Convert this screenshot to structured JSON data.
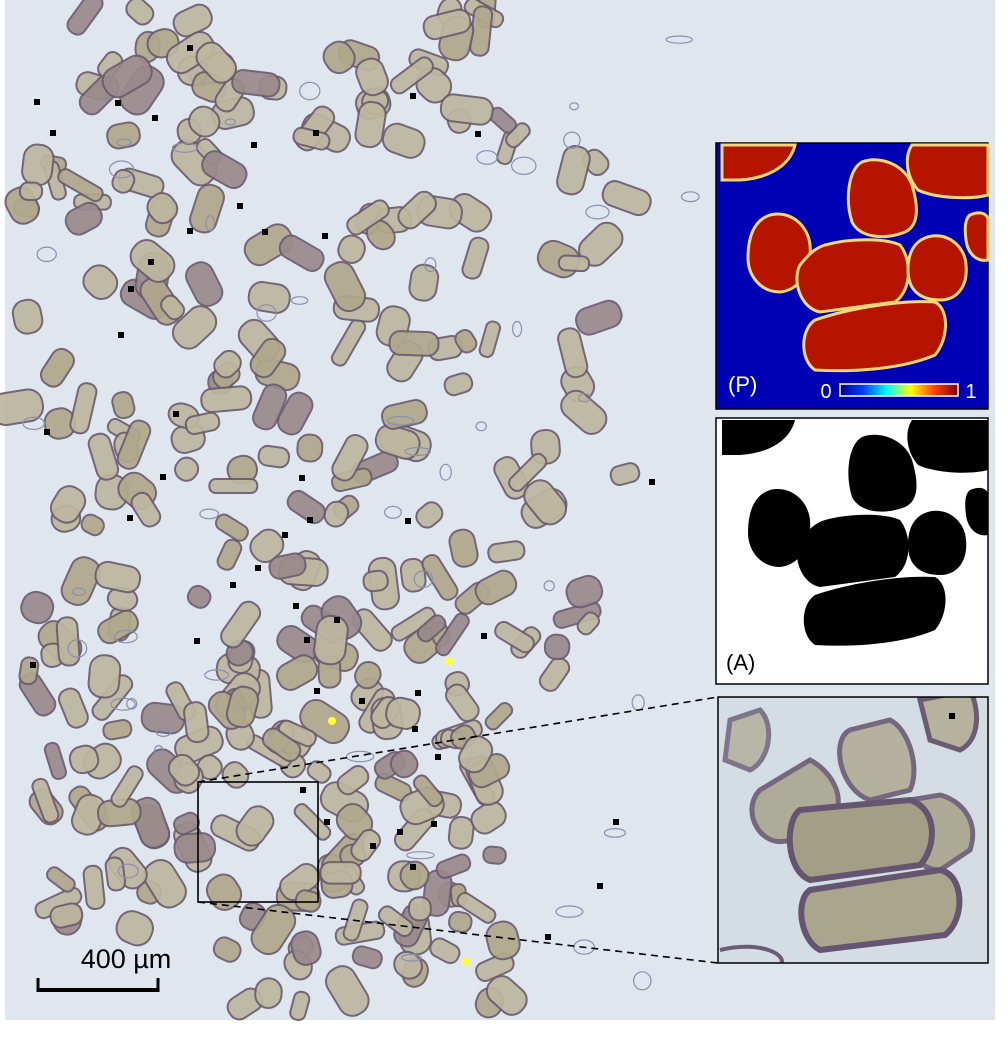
{
  "figure": {
    "scale_bar": {
      "label": "400 µm"
    },
    "panels": {
      "probability": {
        "label": "(P)",
        "colorbar_min": "0",
        "colorbar_max": "1"
      },
      "annotation": {
        "label": "(A)"
      },
      "zoom": {
        "label": ""
      }
    }
  },
  "colors": {
    "background": "#dfe6ee",
    "grain_fill": "#b9b095",
    "grain_edge": "#6a5c6e",
    "marker_black": "#000000",
    "marker_yellow": "#ffff33",
    "prob_low": "#0000b4",
    "prob_high": "#b41400",
    "mask_black": "#000000",
    "mask_white": "#ffffff"
  },
  "markers": {
    "black_count_label": "",
    "yellow_count_label": ""
  }
}
